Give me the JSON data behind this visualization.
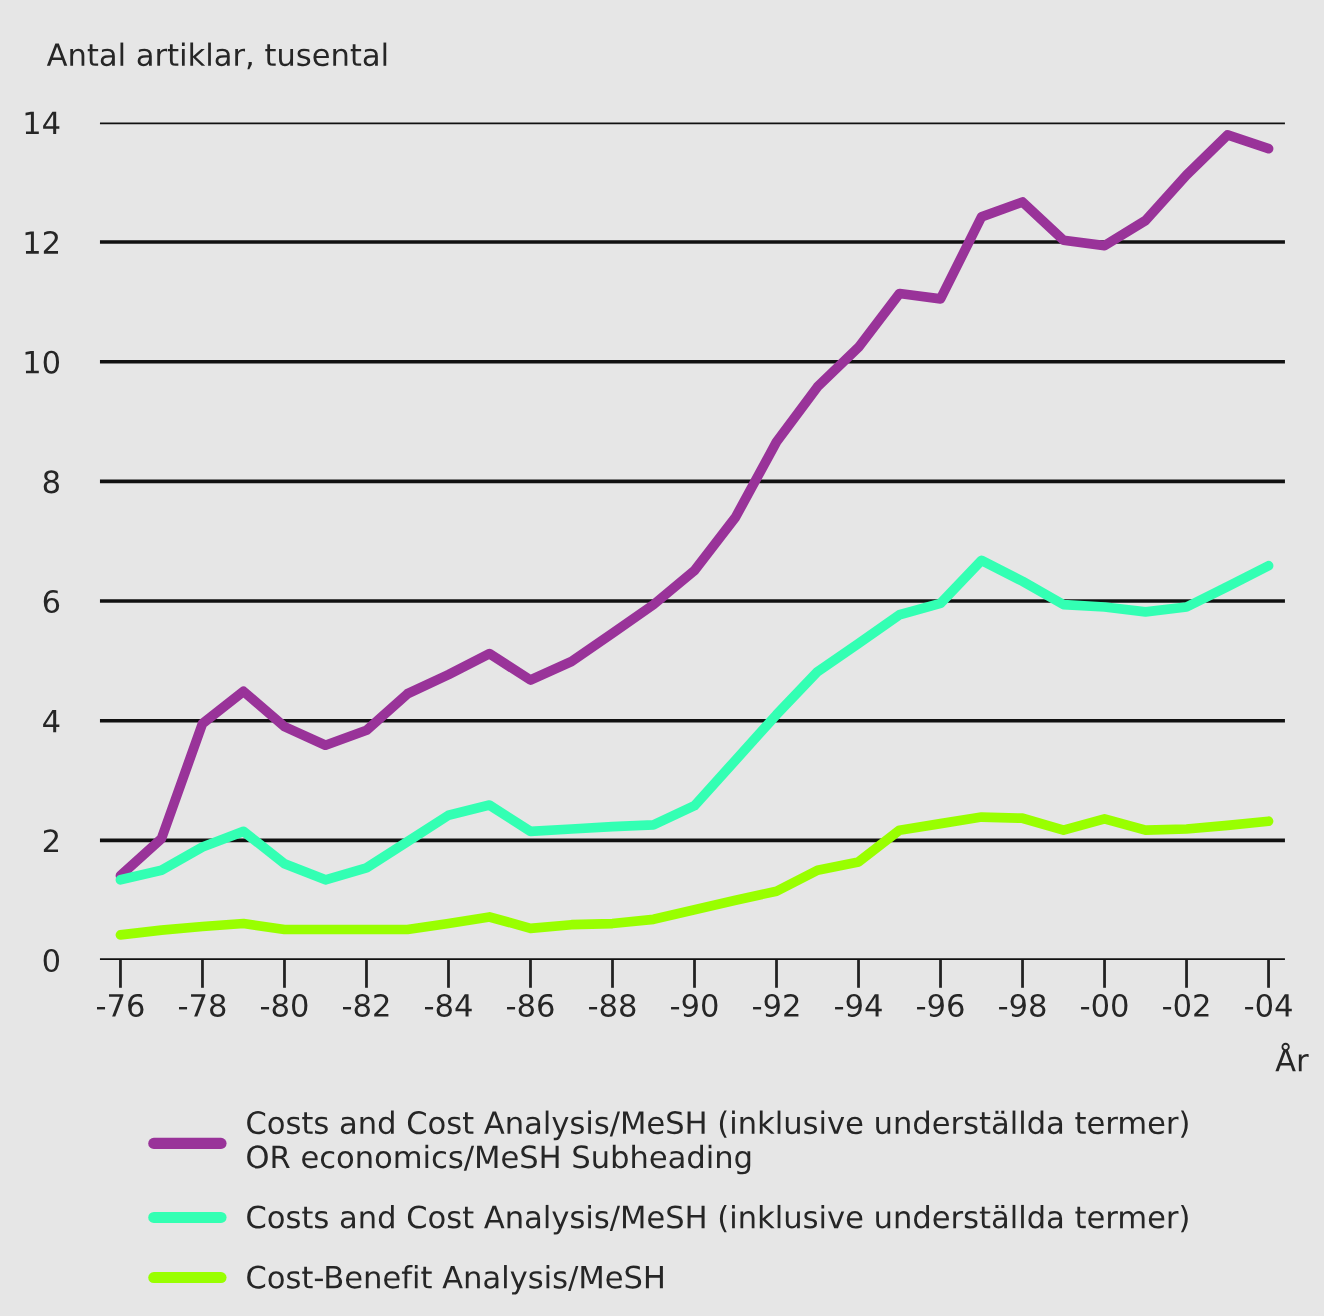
{
  "chart_data": {
    "type": "line",
    "ylabel": "Antal artiklar, tusental",
    "xlabel": "År",
    "categories": [
      "-76",
      null,
      "-78",
      null,
      "-80",
      null,
      "-82",
      null,
      "-84",
      null,
      "-86",
      null,
      "-88",
      null,
      "-90",
      null,
      "-92",
      null,
      "-94",
      null,
      "-96",
      null,
      "-98",
      null,
      "-00",
      null,
      "-02",
      null,
      "-04"
    ],
    "series": [
      {
        "name": "Costs and Cost Analysis/MeSH (inklusive underställda termer)\nOR economics/MeSH Subheading",
        "color": "#993399",
        "values": [
          1.41,
          2.03,
          3.95,
          4.49,
          3.9,
          3.59,
          3.84,
          4.45,
          4.77,
          5.12,
          4.68,
          4.99,
          5.46,
          5.94,
          6.51,
          7.4,
          8.66,
          9.58,
          10.24,
          11.14,
          11.05,
          12.42,
          12.67,
          12.03,
          11.94,
          12.36,
          13.12,
          13.79,
          13.56
        ]
      },
      {
        "name": "Costs and Cost Analysis/MeSH (inklusive underställda termer)",
        "color": "#33ffb3",
        "values": [
          1.34,
          1.5,
          1.89,
          2.15,
          1.61,
          1.34,
          1.54,
          1.98,
          2.42,
          2.59,
          2.15,
          2.19,
          2.23,
          2.26,
          2.58,
          3.34,
          4.1,
          4.82,
          5.29,
          5.77,
          5.96,
          6.68,
          6.33,
          5.94,
          5.9,
          5.82,
          5.9,
          6.24,
          6.59
        ]
      },
      {
        "name": "Cost-Benefit Analysis/MeSH",
        "color": "#99ff00",
        "values": [
          0.42,
          0.5,
          0.56,
          0.61,
          0.51,
          0.51,
          0.51,
          0.51,
          0.61,
          0.72,
          0.53,
          0.59,
          0.61,
          0.68,
          0.84,
          1.0,
          1.15,
          1.5,
          1.64,
          2.17,
          2.28,
          2.39,
          2.37,
          2.17,
          2.36,
          2.17,
          2.19,
          2.25,
          2.32
        ]
      }
    ],
    "ylim": [
      0,
      14
    ],
    "yticks": [
      0,
      2,
      4,
      6,
      8,
      10,
      12,
      14
    ],
    "grid": "y",
    "legend": "bottom",
    "marker": "none",
    "line_style": "solid"
  }
}
